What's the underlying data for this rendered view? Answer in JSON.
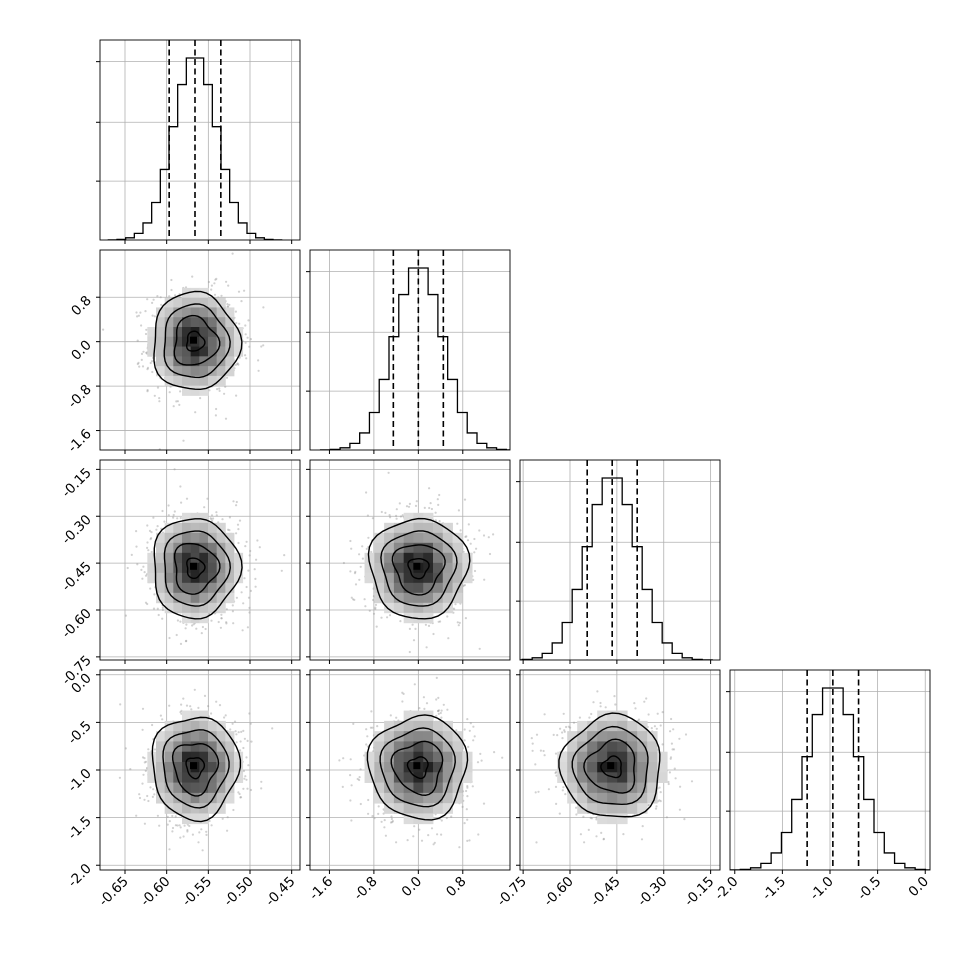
{
  "chart_data": {
    "type": "corner",
    "grid": true,
    "colors": {
      "line": "#000000",
      "grid": "#b0b0b0",
      "points": "#9a9a9a"
    },
    "variables": [
      {
        "range": [
          -0.68,
          -0.44
        ],
        "ticks": [
          "-0.65",
          "-0.60",
          "-0.55",
          "-0.50",
          "-0.45"
        ],
        "mean": -0.566,
        "std": 0.026,
        "quantiles": [
          -0.597,
          -0.566,
          -0.535
        ]
      },
      {
        "range": [
          -1.95,
          1.65
        ],
        "ticks": [
          "-1.6",
          "-0.8",
          "0.0",
          "0.8"
        ],
        "mean": 0.0,
        "std": 0.44,
        "quantiles": [
          -0.45,
          0.0,
          0.45
        ]
      },
      {
        "range": [
          -0.76,
          -0.12
        ],
        "ticks": [
          "-0.75",
          "-0.60",
          "-0.45",
          "-0.30",
          "-0.15"
        ],
        "mean": -0.465,
        "std": 0.08,
        "quantiles": [
          -0.545,
          -0.465,
          -0.385
        ]
      },
      {
        "range": [
          -2.05,
          0.05
        ],
        "ticks": [
          "-2.0",
          "-1.5",
          "-1.0",
          "-0.5",
          "0.0"
        ],
        "mean": -0.97,
        "std": 0.27,
        "quantiles": [
          -1.24,
          -0.97,
          -0.7
        ]
      }
    ],
    "histogram_bins": 20,
    "contour_levels": [
      0.5,
      1.0,
      1.5,
      2.0
    ]
  }
}
